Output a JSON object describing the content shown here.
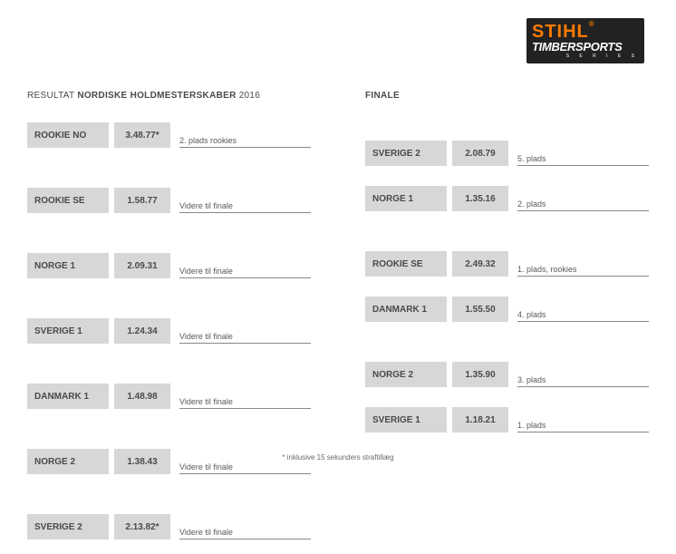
{
  "logo": {
    "brand": "STIHL",
    "sub": "TIMBERSPORTS",
    "series": "S E R I E S"
  },
  "left": {
    "heading_prefix": "RESULTAT ",
    "heading_bold": "NORDISKE HOLDMESTERSKABER",
    "heading_suffix": " 2016",
    "rows": [
      {
        "team": "ROOKIE NO",
        "time": "3.48.77*",
        "note": "2. plads rookies",
        "gap": true
      },
      {
        "team": "ROOKIE SE",
        "time": "1.58.77",
        "note": "Videre til finale",
        "gap": true
      },
      {
        "team": "NORGE 1",
        "time": "2.09.31",
        "note": "Videre til finale",
        "gap": true
      },
      {
        "team": "SVERIGE 1",
        "time": "1.24.34",
        "note": "Videre til finale",
        "gap": true
      },
      {
        "team": "DANMARK 1",
        "time": "1.48.98",
        "note": "Videre til finale",
        "gap": true
      },
      {
        "team": "NORGE 2",
        "time": "1.38.43",
        "note": "Videre til finale",
        "gap": true
      },
      {
        "team": "SVERIGE 2",
        "time": "2.13.82*",
        "note": "Videre til finale",
        "gap": false
      }
    ]
  },
  "right": {
    "heading_bold": "FINALE",
    "rows": [
      {
        "team": "SVERIGE 2",
        "time": "2.08.79",
        "note": "5. plads",
        "gap": false
      },
      {
        "team": "NORGE 1",
        "time": "1.35.16",
        "note": "2. plads",
        "gap": true
      },
      {
        "team": "ROOKIE SE",
        "time": "2.49.32",
        "note": "1. plads, rookies",
        "gap": false
      },
      {
        "team": "DANMARK 1",
        "time": "1.55.50",
        "note": "4. plads",
        "gap": true
      },
      {
        "team": "NORGE 2",
        "time": "1.35.90",
        "note": "3. plads",
        "gap": false
      },
      {
        "team": "SVERIGE 1",
        "time": "1.18.21",
        "note": "1. plads",
        "gap": false
      }
    ]
  },
  "footnote": "* inklusive 15 sekunders straftillæg",
  "style": {
    "box_bg": "#d7d7d7",
    "text_color": "#4a4a4a",
    "line_color": "#888888",
    "background": "#ffffff",
    "logo_bg": "#222222",
    "logo_orange": "#ff7a00"
  }
}
